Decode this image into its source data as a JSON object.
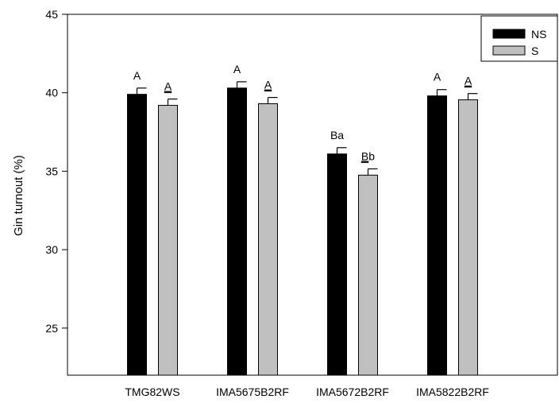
{
  "chart_data": {
    "type": "bar",
    "title": "",
    "xlabel": "",
    "ylabel": "Gin turnout (%)",
    "ylim": [
      22,
      45
    ],
    "yticks": [
      25,
      30,
      35,
      40,
      45
    ],
    "grid": false,
    "legend_position": "top-right",
    "categories": [
      "TMG82WS",
      "IMA5675B2RF",
      "IMA5672B2RF",
      "IMA5822B2RF"
    ],
    "series": [
      {
        "name": "NS",
        "color": "#000000",
        "values": [
          39.9,
          40.3,
          36.1,
          39.8
        ],
        "errors": [
          0.4,
          0.4,
          0.4,
          0.4
        ],
        "labels": [
          "A",
          "A",
          "Ba",
          "A"
        ]
      },
      {
        "name": "S",
        "color": "#c0c0c0",
        "values": [
          39.2,
          39.3,
          34.75,
          39.55
        ],
        "errors": [
          0.4,
          0.4,
          0.4,
          0.4
        ],
        "labels": [
          {
            "underlined": "A",
            "rest": ""
          },
          {
            "underlined": "A",
            "rest": ""
          },
          {
            "underlined": "B",
            "rest": "b"
          },
          {
            "underlined": "A",
            "rest": ""
          }
        ]
      }
    ]
  }
}
